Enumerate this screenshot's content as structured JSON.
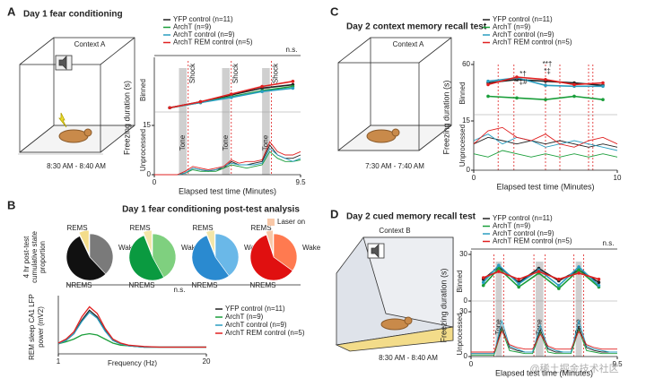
{
  "panels": [
    {
      "label": "A",
      "title": "Day 1 fear conditioning",
      "context": "Context A",
      "time": "8:30 AM - 8:40 AM"
    },
    {
      "label": "B",
      "title": "Day 1 fear conditioning post-test analysis"
    },
    {
      "label": "C",
      "title": "Day 2 context memory recall test",
      "context": "Context A",
      "time": "7:30 AM - 7:40 AM"
    },
    {
      "label": "D",
      "title": "Day 2 cued memory recall test",
      "context": "Context B",
      "time": "8:30 AM - 8:40 AM"
    }
  ],
  "watermark": "@稀土掘金技术社区",
  "chart_data": [
    {
      "type": "line",
      "ylabel": "Freezing duration (s)",
      "xlabel": "Elapsed test time (Minutes)",
      "binned_label": "Binned",
      "unprocessed_label": "Unprocessed",
      "annotation": "n.s.",
      "xlim": [
        0,
        9.5
      ],
      "xticks": [
        0,
        9.5
      ],
      "ylim": [
        0,
        15
      ],
      "yticks": [
        0,
        15
      ],
      "binned_ylim": [
        0,
        60
      ],
      "binned_yticks": [],
      "binned_x": [
        1,
        3,
        5,
        7,
        9
      ],
      "x": [
        0,
        0.5,
        1,
        1.5,
        2,
        2.5,
        3,
        3.5,
        4,
        4.5,
        5,
        5.5,
        6,
        6.5,
        7,
        7.5,
        8,
        8.5,
        9,
        9.5
      ],
      "tones": [
        [
          1.6,
          2.1
        ],
        [
          4.4,
          4.9
        ],
        [
          7.0,
          7.5
        ]
      ],
      "tone_label": "Tone",
      "shocks": [
        2.2,
        5.0,
        7.6
      ],
      "shock_label": "Shock",
      "series": [
        {
          "name": "YFP control (n=11)",
          "color": "#222222",
          "binned": [
            5,
            12,
            20,
            28,
            32
          ],
          "values": [
            0,
            0,
            0,
            0,
            0.5,
            2,
            1.5,
            1,
            1.5,
            2,
            4,
            3,
            3,
            3.5,
            4,
            9,
            6,
            5,
            5,
            6
          ]
        },
        {
          "name": "ArchT (n=9)",
          "color": "#1a9e3a",
          "binned": [
            5,
            11,
            18,
            25,
            30
          ],
          "values": [
            0,
            0,
            0,
            0,
            0.5,
            1.5,
            1,
            1,
            1,
            2,
            3,
            2.5,
            2,
            2.5,
            3,
            7,
            5,
            4,
            4,
            4.5
          ]
        },
        {
          "name": "ArchT control (n=9)",
          "color": "#2a9ec0",
          "binned": [
            5,
            11,
            17,
            24,
            28
          ],
          "values": [
            0,
            0,
            0,
            0,
            0.5,
            2,
            1.5,
            1.2,
            1.5,
            2.5,
            3.5,
            3,
            3,
            3,
            3.5,
            8,
            6,
            5,
            4,
            5
          ]
        },
        {
          "name": "ArchT REM control (n=5)",
          "color": "#e02020",
          "binned": [
            5,
            12,
            21,
            30,
            36
          ],
          "values": [
            0,
            0,
            0,
            0,
            1,
            2.5,
            2,
            1.5,
            2,
            2.5,
            4.5,
            3.5,
            4,
            4,
            4.5,
            10,
            7,
            6,
            6,
            7
          ]
        }
      ]
    },
    {
      "type": "line",
      "ylabel": "Freezing duration (s)",
      "xlabel": "Elapsed test time (Minutes)",
      "binned_label": "Binned",
      "unprocessed_label": "Unprocessed",
      "xlim": [
        0,
        10
      ],
      "xticks": [
        0,
        10
      ],
      "ylim": [
        0,
        15
      ],
      "yticks": [
        0,
        15
      ],
      "binned_ylim": [
        0,
        60
      ],
      "binned_yticks": [
        60
      ],
      "binned_x": [
        1,
        3,
        5,
        7,
        9
      ],
      "x": [
        0,
        1,
        2,
        3,
        4,
        5,
        6,
        7,
        8,
        9,
        10
      ],
      "markers": [
        1.7,
        2.8,
        5,
        6,
        8,
        8.3
      ],
      "annotations": [
        "*†",
        "**‡#",
        "**†",
        "*‡"
      ],
      "series": [
        {
          "name": "YFP control (n=11)",
          "color": "#222222",
          "binned": [
            38,
            42,
            40,
            38,
            35
          ],
          "values": [
            8,
            10,
            9,
            8,
            9,
            8,
            9,
            8,
            7,
            8,
            7
          ]
        },
        {
          "name": "ArchT (n=9)",
          "color": "#1a9e3a",
          "binned": [
            22,
            20,
            18,
            22,
            18
          ],
          "values": [
            5,
            4,
            6,
            5,
            4,
            5,
            4,
            5,
            4,
            5,
            4
          ]
        },
        {
          "name": "ArchT control (n=9)",
          "color": "#2a9ec0",
          "binned": [
            40,
            44,
            35,
            34,
            34
          ],
          "values": [
            9,
            11,
            8,
            10,
            9,
            7,
            8,
            9,
            8,
            7,
            6
          ]
        },
        {
          "name": "ArchT REM control (n=5)",
          "color": "#e02020",
          "binned": [
            36,
            45,
            42,
            36,
            38
          ],
          "values": [
            8,
            12,
            13,
            10,
            9,
            11,
            8,
            7,
            9,
            10,
            8
          ]
        }
      ]
    },
    {
      "type": "line",
      "ylabel": "Freezing duration (s)",
      "xlabel": "Elapsed test time (Minutes)",
      "binned_label": "Binned",
      "unprocessed_label": "Unprocessed",
      "annotation": "n.s.",
      "xlim": [
        0,
        9.5
      ],
      "xticks": [
        0,
        9.5
      ],
      "ylim": [
        0,
        30
      ],
      "yticks": [
        0,
        30
      ],
      "binned_ylim": [
        0,
        30
      ],
      "binned_yticks": [
        0,
        30
      ],
      "binned_x": [
        0.8,
        1.8,
        3.1,
        4.4,
        5.7,
        7.0,
        8.3
      ],
      "x": [
        0,
        0.5,
        1,
        1.5,
        2,
        2.5,
        3,
        3.5,
        4,
        4.5,
        5,
        5.5,
        6,
        6.5,
        7,
        7.5,
        8,
        8.5,
        9,
        9.5
      ],
      "tones": [
        [
          1.6,
          2.0
        ],
        [
          4.2,
          4.7
        ],
        [
          6.8,
          7.2
        ]
      ],
      "tone_label": "Tone",
      "series": [
        {
          "name": "YFP control (n=11)",
          "color": "#222222",
          "binned": [
            14,
            22,
            12,
            21,
            13,
            20,
            12
          ],
          "values": [
            2,
            2,
            2,
            2,
            20,
            6,
            4,
            3,
            3,
            18,
            5,
            3,
            3,
            3,
            20,
            6,
            4,
            3,
            3,
            3
          ]
        },
        {
          "name": "ArchT (n=9)",
          "color": "#1a9e3a",
          "binned": [
            10,
            21,
            9,
            18,
            8,
            20,
            9
          ],
          "values": [
            1,
            1,
            1,
            1,
            18,
            4,
            3,
            2,
            2,
            16,
            3,
            2,
            2,
            2,
            18,
            4,
            3,
            2,
            2,
            2
          ]
        },
        {
          "name": "ArchT control (n=9)",
          "color": "#2a9ec0",
          "binned": [
            12,
            23,
            11,
            20,
            10,
            22,
            10
          ],
          "values": [
            2,
            2,
            2,
            2,
            24,
            7,
            5,
            3,
            3,
            21,
            6,
            4,
            3,
            3,
            24,
            7,
            5,
            4,
            3,
            3
          ]
        },
        {
          "name": "ArchT REM control (n=5)",
          "color": "#e02020",
          "binned": [
            15,
            19,
            14,
            19,
            14,
            18,
            14
          ],
          "values": [
            3,
            3,
            3,
            3,
            17,
            8,
            6,
            5,
            5,
            15,
            7,
            5,
            5,
            5,
            17,
            8,
            6,
            5,
            5,
            5
          ]
        }
      ]
    },
    {
      "type": "pie",
      "ylabel": [
        "4 hr post-test",
        "cumulative state",
        "proportion"
      ],
      "categories": [
        "Wake",
        "NREMS",
        "REMS"
      ],
      "annotation": "n.s.",
      "laser_label": "Laser on",
      "laser_color": "#f8c8a8",
      "series": [
        {
          "values": [
            38,
            55,
            7
          ],
          "colors": [
            "#7a7a7a",
            "#111111",
            "#f3dc8a"
          ],
          "label_color": "#222222"
        },
        {
          "values": [
            42,
            52,
            6
          ],
          "colors": [
            "#7fd07f",
            "#0a9a40",
            "#f3e6a8"
          ],
          "label_color": "#1a9e3a"
        },
        {
          "values": [
            40,
            54,
            6
          ],
          "colors": [
            "#6ab8e8",
            "#2a8ad0",
            "#f3e6a8"
          ],
          "label_color": "#2a8ad0"
        },
        {
          "values": [
            35,
            60,
            5
          ],
          "colors": [
            "#ff7a50",
            "#e01010",
            "#f8c8a8"
          ],
          "label_color": "#e02020"
        }
      ]
    },
    {
      "type": "line",
      "ylabel": [
        "REM sleep CA1 LFP",
        "power (mV2)"
      ],
      "xlabel": "Frequency (Hz)",
      "xlim": [
        1,
        20
      ],
      "xticks": [
        1,
        20
      ],
      "ylim": [
        0,
        0.8
      ],
      "x": [
        1,
        2,
        3,
        4,
        5,
        6,
        7,
        8,
        9,
        10,
        12,
        14,
        16,
        18,
        20
      ],
      "series": [
        {
          "name": "YFP control (n=11)",
          "color": "#222222",
          "values": [
            0.15,
            0.2,
            0.3,
            0.5,
            0.65,
            0.55,
            0.35,
            0.2,
            0.15,
            0.12,
            0.1,
            0.1,
            0.1,
            0.1,
            0.1
          ]
        },
        {
          "name": "ArchT (n=9)",
          "color": "#1a9e3a",
          "values": [
            0.15,
            0.18,
            0.22,
            0.28,
            0.3,
            0.28,
            0.22,
            0.16,
            0.13,
            0.12,
            0.1,
            0.1,
            0.1,
            0.1,
            0.1
          ]
        },
        {
          "name": "ArchT control (n=9)",
          "color": "#2a9ec0",
          "values": [
            0.15,
            0.2,
            0.3,
            0.48,
            0.62,
            0.53,
            0.34,
            0.2,
            0.15,
            0.12,
            0.1,
            0.1,
            0.1,
            0.1,
            0.1
          ]
        },
        {
          "name": "ArchT REM control (n=5)",
          "color": "#e02020",
          "values": [
            0.16,
            0.22,
            0.33,
            0.55,
            0.7,
            0.6,
            0.38,
            0.22,
            0.16,
            0.13,
            0.11,
            0.1,
            0.1,
            0.1,
            0.1
          ]
        }
      ]
    }
  ]
}
